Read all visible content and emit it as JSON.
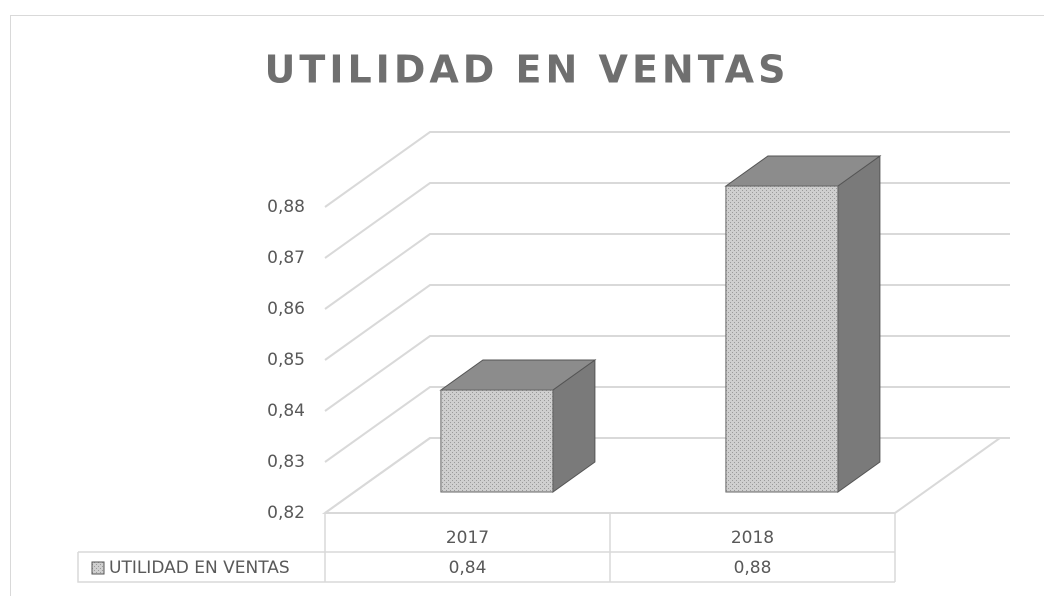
{
  "chart_data": {
    "type": "bar3d",
    "title": "UTILIDAD EN VENTAS",
    "categories": [
      "2017",
      "2018"
    ],
    "series": [
      {
        "name": "UTILIDAD EN VENTAS",
        "color": "#c8c8c8",
        "values": [
          0.84,
          0.88
        ],
        "value_labels": [
          "0,84",
          "0,88"
        ]
      }
    ],
    "ylim": [
      0.82,
      0.88
    ],
    "yticks": [
      {
        "value": 0.82,
        "label": "0,82"
      },
      {
        "value": 0.83,
        "label": "0,83"
      },
      {
        "value": 0.84,
        "label": "0,84"
      },
      {
        "value": 0.85,
        "label": "0,85"
      },
      {
        "value": 0.86,
        "label": "0,86"
      },
      {
        "value": 0.87,
        "label": "0,87"
      },
      {
        "value": 0.88,
        "label": "0,88"
      }
    ],
    "grid": true,
    "data_table": true
  }
}
